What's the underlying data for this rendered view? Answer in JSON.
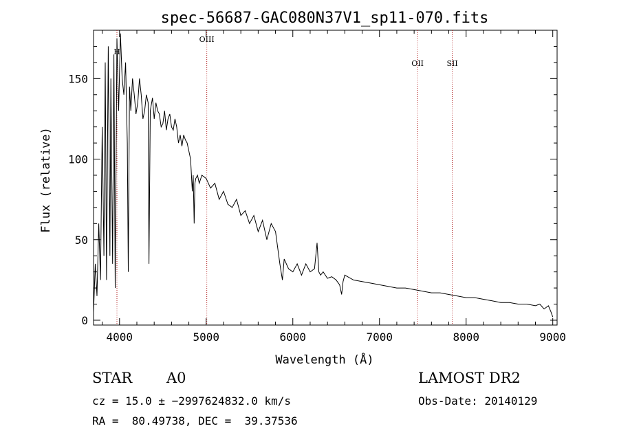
{
  "chart_data": {
    "type": "line",
    "title": "spec-56687-GAC080N37V1_sp11-070.fits",
    "xlabel": "Wavelength (Å)",
    "ylabel": "Flux (relative)",
    "xlim": [
      3700,
      9050
    ],
    "ylim": [
      -3,
      180
    ],
    "xticks": [
      4000,
      5000,
      6000,
      7000,
      8000,
      9000
    ],
    "yticks": [
      0,
      50,
      100,
      150
    ],
    "grid": false,
    "line_color": "#000000",
    "marker_color": "#b22222",
    "line_markers": [
      {
        "label": "H",
        "x": 3970
      },
      {
        "label": "OIII",
        "x": 5007
      },
      {
        "label": "OII",
        "x": 7440
      },
      {
        "label": "SII",
        "x": 7840
      }
    ],
    "series": [
      {
        "x": [
          3700,
          3720,
          3740,
          3760,
          3780,
          3800,
          3820,
          3835,
          3850,
          3870,
          3889,
          3900,
          3920,
          3935,
          3950,
          3970,
          3990,
          4010,
          4030,
          4050,
          4070,
          4090,
          4101,
          4115,
          4130,
          4150,
          4170,
          4190,
          4210,
          4230,
          4250,
          4270,
          4290,
          4310,
          4330,
          4340,
          4355,
          4380,
          4400,
          4420,
          4440,
          4460,
          4480,
          4500,
          4520,
          4540,
          4560,
          4580,
          4600,
          4620,
          4640,
          4660,
          4680,
          4700,
          4720,
          4740,
          4760,
          4780,
          4800,
          4820,
          4840,
          4850,
          4861,
          4870,
          4880,
          4900,
          4920,
          4950,
          5000,
          5050,
          5100,
          5150,
          5200,
          5250,
          5300,
          5350,
          5400,
          5450,
          5500,
          5550,
          5600,
          5650,
          5700,
          5750,
          5800,
          5850,
          5880,
          5900,
          5950,
          6000,
          6050,
          6100,
          6150,
          6200,
          6250,
          6280,
          6300,
          6320,
          6350,
          6400,
          6450,
          6500,
          6540,
          6563,
          6580,
          6600,
          6700,
          6800,
          6900,
          7000,
          7100,
          7200,
          7300,
          7400,
          7500,
          7600,
          7700,
          7800,
          7900,
          8000,
          8100,
          8200,
          8300,
          8400,
          8500,
          8600,
          8700,
          8800,
          8850,
          8900,
          8950,
          8980,
          9000
        ],
        "y": [
          5,
          35,
          15,
          60,
          25,
          120,
          40,
          160,
          25,
          170,
          40,
          150,
          35,
          165,
          20,
          175,
          130,
          178,
          150,
          140,
          160,
          110,
          30,
          145,
          130,
          150,
          140,
          128,
          135,
          150,
          140,
          125,
          130,
          140,
          135,
          35,
          130,
          138,
          125,
          135,
          130,
          128,
          120,
          122,
          130,
          118,
          125,
          128,
          120,
          118,
          125,
          120,
          110,
          115,
          108,
          115,
          112,
          110,
          105,
          100,
          80,
          90,
          60,
          85,
          88,
          90,
          85,
          90,
          88,
          82,
          85,
          75,
          80,
          72,
          70,
          75,
          65,
          68,
          60,
          65,
          55,
          62,
          50,
          60,
          55,
          35,
          25,
          38,
          32,
          30,
          35,
          28,
          35,
          30,
          32,
          48,
          30,
          28,
          30,
          26,
          27,
          25,
          22,
          16,
          24,
          28,
          25,
          24,
          23,
          22,
          21,
          20,
          20,
          19,
          18,
          17,
          17,
          16,
          15,
          14,
          14,
          13,
          12,
          11,
          11,
          10,
          10,
          9,
          10,
          7,
          9,
          5,
          2
        ]
      }
    ]
  },
  "info": {
    "object_type": "STAR",
    "subclass": "A0",
    "survey": "LAMOST DR2",
    "cz_line": "cz = 15.0 ± −2997624832.0 km/s",
    "obs_date_line": "Obs-Date: 20140129",
    "radec_line": "RA =  80.49738, DEC =  39.37536"
  }
}
